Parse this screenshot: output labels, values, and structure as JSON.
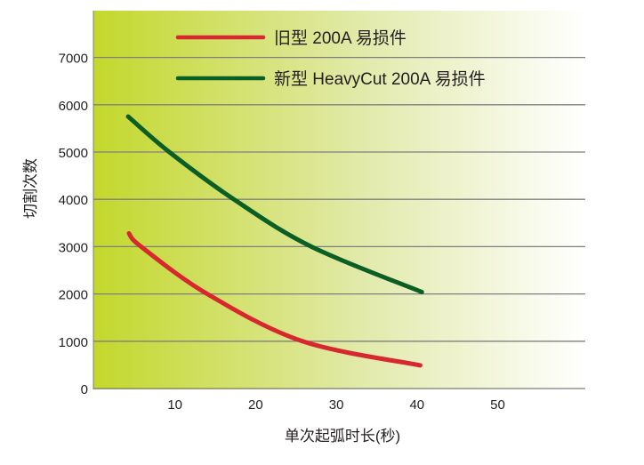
{
  "chart_data": {
    "type": "line",
    "title": "",
    "xlabel": "单次起弧时长(秒)",
    "ylabel": "切割次数",
    "xlim": [
      0,
      60
    ],
    "ylim": [
      0,
      7000
    ],
    "xticks": [
      10,
      20,
      30,
      40,
      50
    ],
    "yticks": [
      0,
      1000,
      2000,
      3000,
      4000,
      5000,
      6000,
      7000
    ],
    "grid": "horizontal",
    "legend_position": "top-center",
    "series": [
      {
        "name": "旧型 200A 易损件",
        "color": "#d7282f",
        "x": [
          4.3,
          5.8,
          14,
          25.8,
          40.4
        ],
        "y": [
          3280,
          3000,
          2000,
          1000,
          490
        ]
      },
      {
        "name": "新型 HeavyCut 200A 易损件",
        "color": "#0b5e24",
        "x": [
          4.2,
          9.3,
          17.3,
          26.9,
          40.6
        ],
        "y": [
          5750,
          5000,
          4000,
          3000,
          2040
        ]
      }
    ],
    "background_gradient": [
      "#c3d82c",
      "#ffffff"
    ]
  }
}
